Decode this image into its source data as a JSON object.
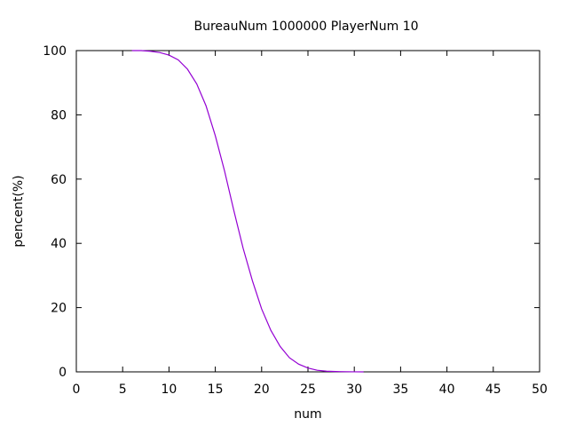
{
  "chart_data": {
    "type": "line",
    "title": "BureauNum 1000000 PlayerNum 10",
    "xlabel": "num",
    "ylabel": "pencent(%)",
    "xlim": [
      0,
      50
    ],
    "ylim": [
      0,
      100
    ],
    "x_ticks": [
      0,
      5,
      10,
      15,
      20,
      25,
      30,
      35,
      40,
      45,
      50
    ],
    "y_ticks": [
      0,
      20,
      40,
      60,
      80,
      100
    ],
    "grid": false,
    "legend": "none",
    "series": [
      {
        "color": "#9400d3",
        "x": [
          6,
          7,
          8,
          9,
          10,
          11,
          12,
          13,
          14,
          15,
          16,
          17,
          18,
          19,
          20,
          21,
          22,
          23,
          24,
          25,
          26,
          27,
          28,
          29,
          30,
          31
        ],
        "y": [
          100,
          100,
          99.8,
          99.4,
          98.6,
          97.1,
          94.2,
          89.6,
          82.8,
          73.5,
          62.5,
          50.2,
          38.5,
          28.4,
          19.6,
          12.9,
          7.9,
          4.4,
          2.4,
          1.2,
          0.5,
          0.2,
          0.1,
          0.05,
          0.02,
          0
        ]
      }
    ]
  }
}
